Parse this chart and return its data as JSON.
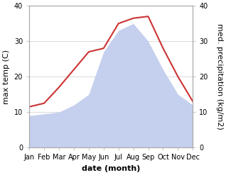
{
  "months": [
    "Jan",
    "Feb",
    "Mar",
    "Apr",
    "May",
    "Jun",
    "Jul",
    "Aug",
    "Sep",
    "Oct",
    "Nov",
    "Dec"
  ],
  "temperature": [
    11.5,
    12.5,
    17.0,
    22.0,
    27.0,
    28.0,
    35.0,
    36.5,
    37.0,
    28.0,
    20.0,
    13.0
  ],
  "precipitation": [
    9.0,
    9.5,
    10.0,
    12.0,
    15.0,
    27.0,
    33.0,
    35.0,
    30.0,
    22.0,
    15.0,
    12.0
  ],
  "temp_color": "#cc3333",
  "precip_color": "#c5d0ee",
  "ylabel_left": "max temp (C)",
  "ylabel_right": "med. precipitation (kg/m2)",
  "xlabel": "date (month)",
  "ylim_left": [
    0,
    40
  ],
  "ylim_right": [
    0,
    40
  ],
  "yticks": [
    0,
    10,
    20,
    30,
    40
  ],
  "bg_color": "#ffffff",
  "label_fontsize": 8,
  "tick_fontsize": 7
}
